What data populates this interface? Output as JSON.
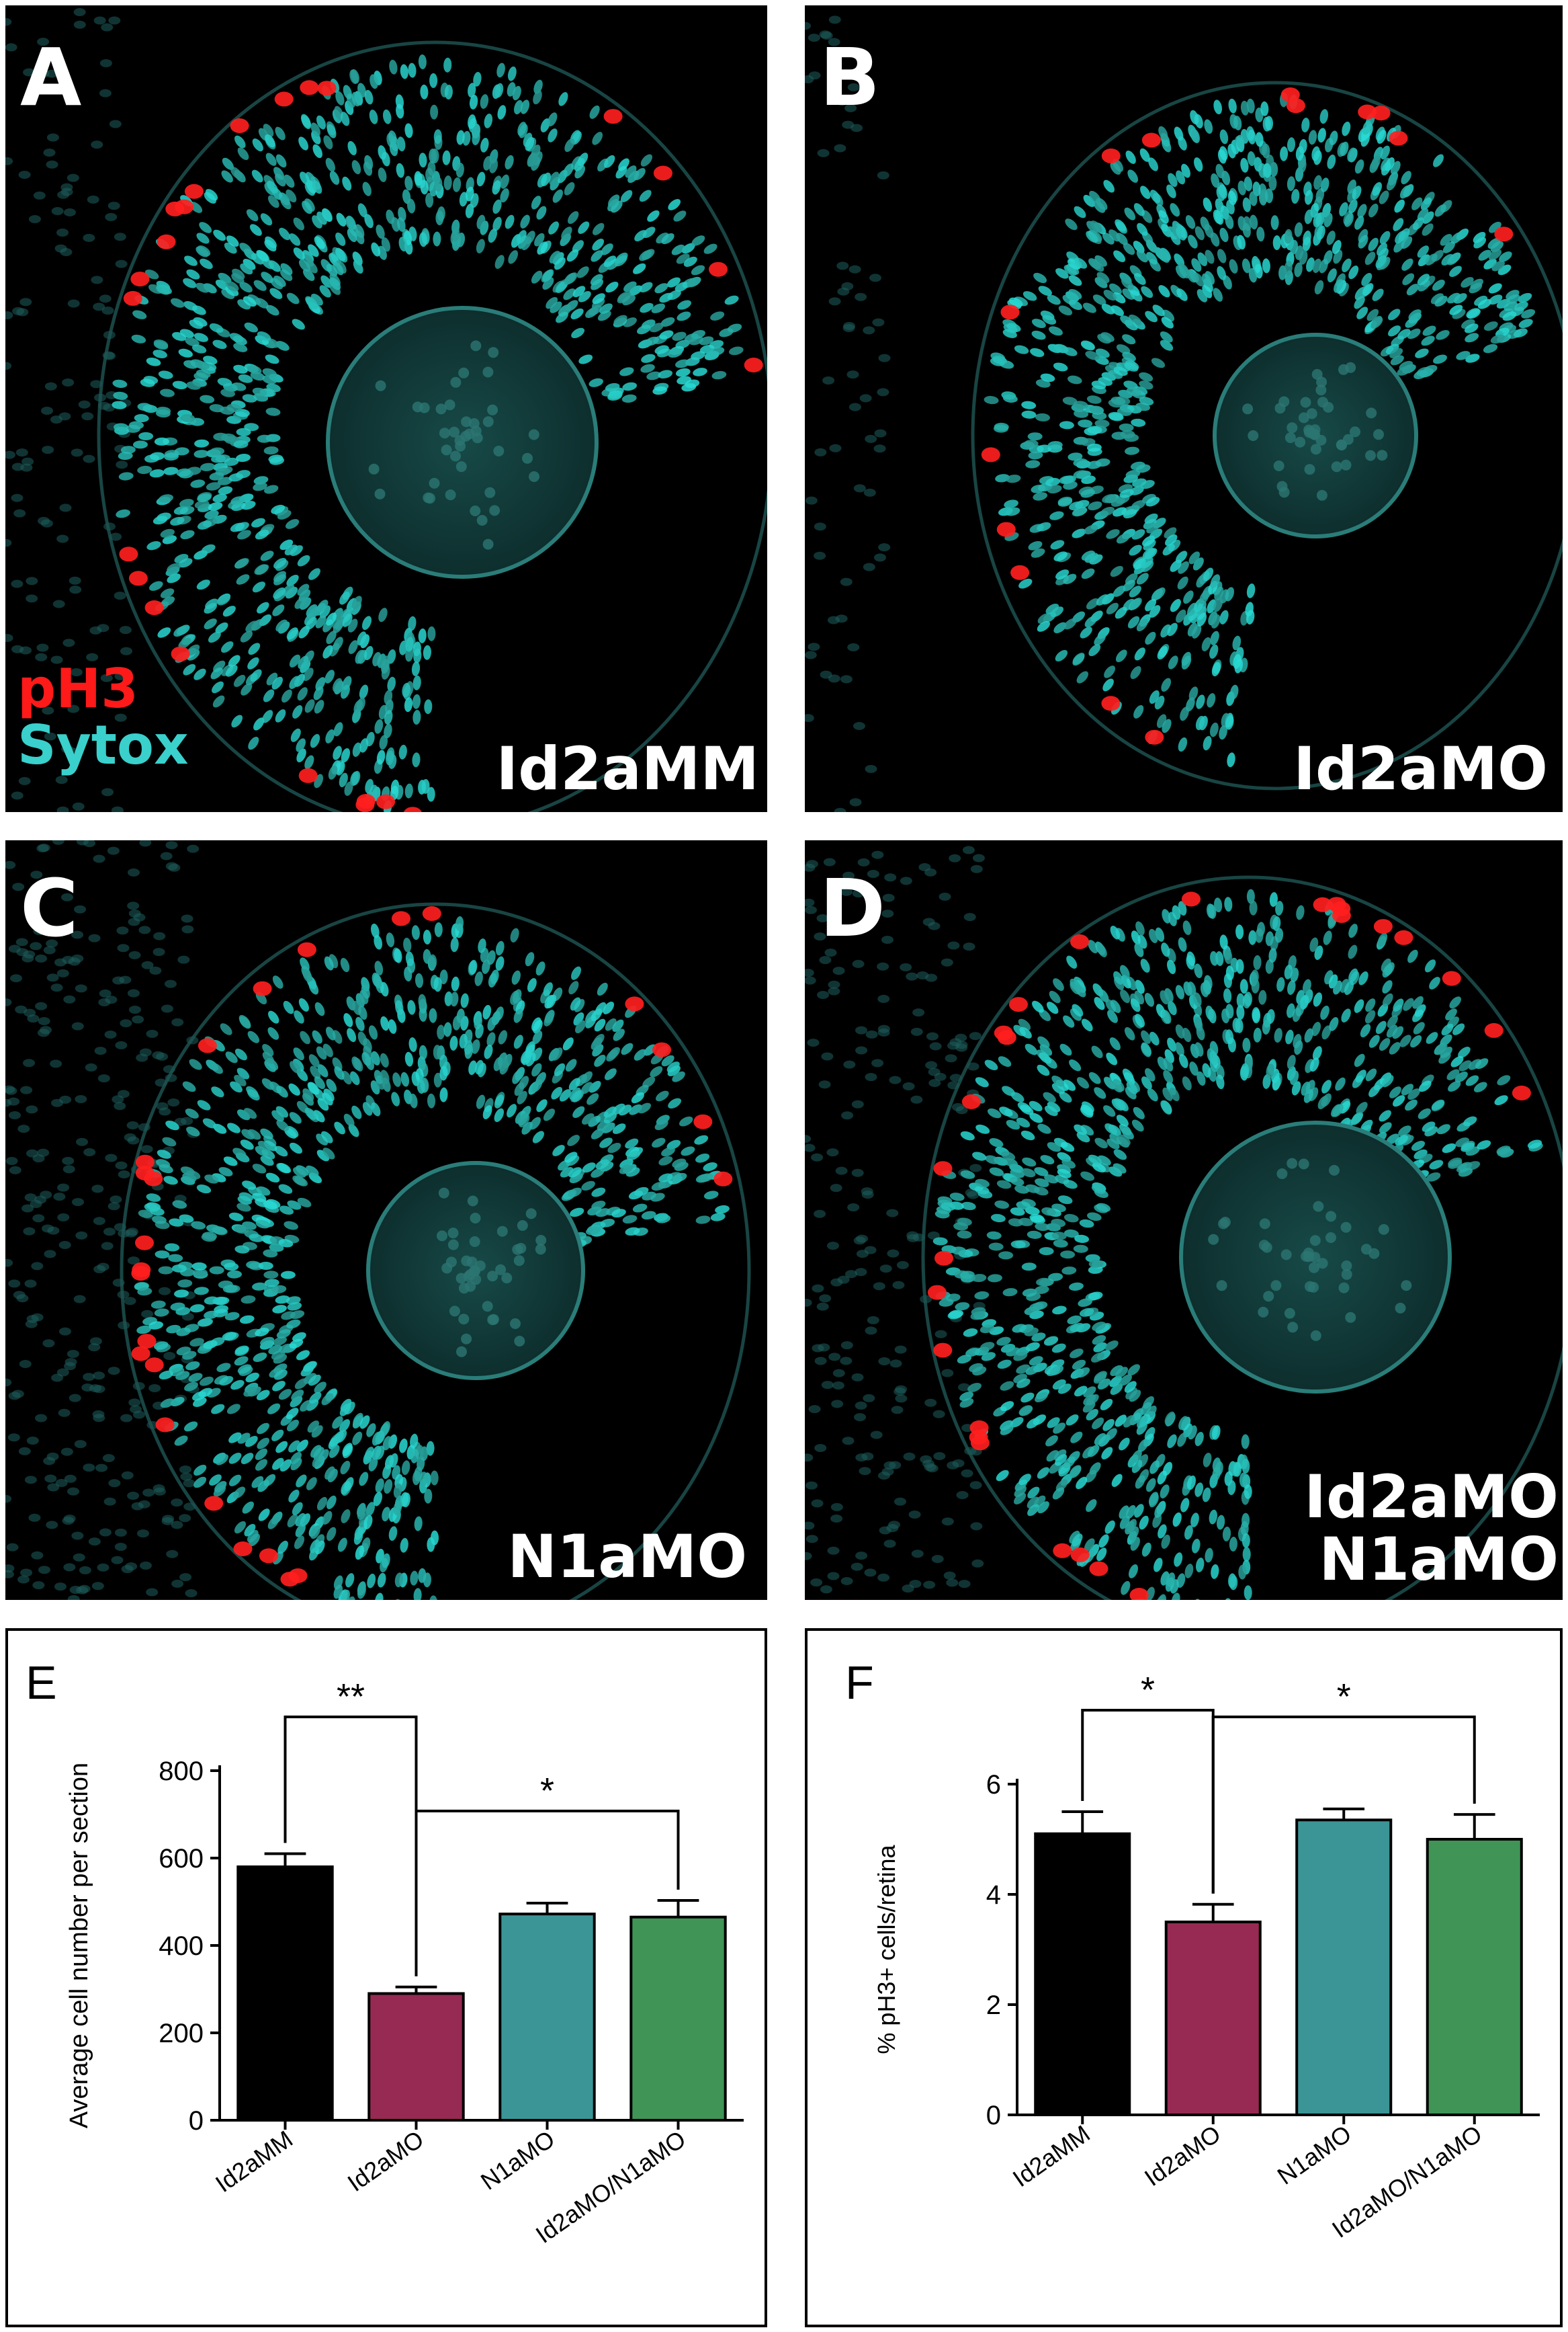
{
  "panels": [
    {
      "letter": "A",
      "condition_lines": [
        "Id2aMM"
      ],
      "legend": {
        "red": "pH3",
        "cyan": "Sytox"
      }
    },
    {
      "letter": "B",
      "condition_lines": [
        "Id2aMO"
      ]
    },
    {
      "letter": "C",
      "condition_lines": [
        "N1aMO"
      ]
    },
    {
      "letter": "D",
      "condition_lines": [
        "Id2aMO",
        "N1aMO"
      ]
    }
  ],
  "colors": {
    "pH3_red": "#ff1a1a",
    "sytox_cyan": "#3ad0cc",
    "bar_colors": [
      "#000000",
      "#962a52",
      "#3b9597",
      "#3f9456"
    ]
  },
  "chart_data": [
    {
      "panel_letter": "E",
      "type": "bar",
      "categories": [
        "Id2aMM",
        "Id2aMO",
        "N1aMO",
        "Id2aMO/N1aMO"
      ],
      "values": [
        580,
        290,
        472,
        465
      ],
      "errors": [
        30,
        15,
        25,
        38
      ],
      "ylabel": "Average cell number per section",
      "xlabel": "",
      "ylim": [
        0,
        800
      ],
      "yticks": [
        0,
        200,
        400,
        600,
        800
      ],
      "significance": [
        {
          "from": 0,
          "to": 1,
          "label": "**"
        },
        {
          "from": 1,
          "to": 3,
          "label": "*"
        }
      ],
      "grid": false,
      "legend": "none"
    },
    {
      "panel_letter": "F",
      "type": "bar",
      "categories": [
        "Id2aMM",
        "Id2aMO",
        "N1aMO",
        "Id2aMO/N1aMO"
      ],
      "values": [
        5.1,
        3.5,
        5.35,
        5.0
      ],
      "errors": [
        0.4,
        0.32,
        0.2,
        0.45
      ],
      "ylabel": "% pH3+ cells/retina",
      "xlabel": "",
      "ylim": [
        0,
        6
      ],
      "yticks": [
        0,
        2,
        4,
        6
      ],
      "significance": [
        {
          "from": 0,
          "to": 1,
          "label": "*"
        },
        {
          "from": 1,
          "to": 3,
          "label": "*"
        }
      ],
      "grid": false,
      "legend": "none"
    }
  ]
}
